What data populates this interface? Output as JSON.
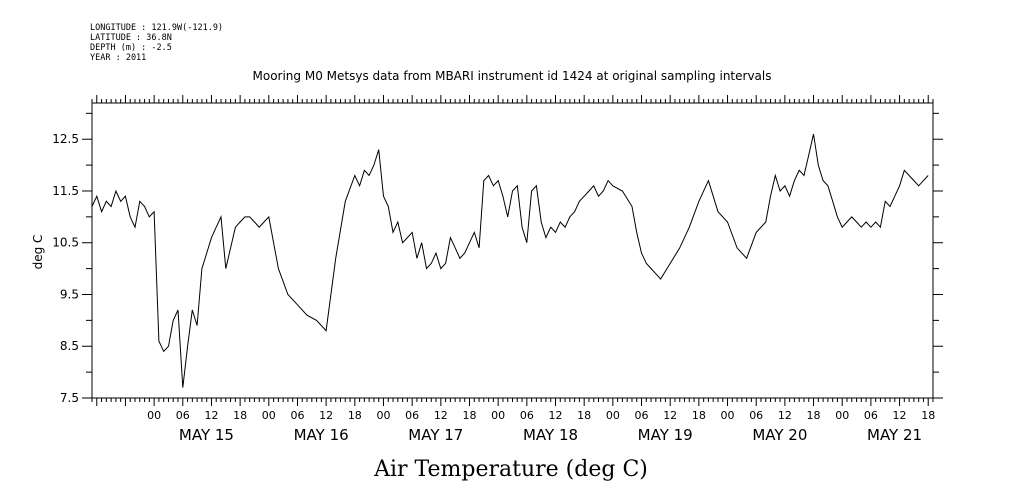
{
  "header": {
    "longitude": "LONGITUDE : 121.9W(-121.9)",
    "latitude": "LATITUDE : 36.8N",
    "depth": "DEPTH (m) : -2.5",
    "year": "YEAR : 2011"
  },
  "chart_data": {
    "type": "line",
    "title": "Mooring M0 Metsys data from MBARI instrument id 1424 at original sampling intervals",
    "xlabel": "Air Temperature (deg C)",
    "ylabel": "deg C",
    "xlim_hours_from_may15_00": [
      -13,
      163
    ],
    "ylim": [
      7.5,
      13.2
    ],
    "y_ticks": [
      7.5,
      8.5,
      9.5,
      10.5,
      11.5,
      12.5
    ],
    "hour_labels": [
      "00",
      "06",
      "12",
      "18",
      "00",
      "06",
      "12",
      "18",
      "00",
      "06",
      "12",
      "18",
      "00",
      "06",
      "12",
      "18",
      "00",
      "06",
      "12",
      "18",
      "00",
      "06",
      "12",
      "18",
      "00",
      "06",
      "12",
      "18"
    ],
    "day_labels": [
      "MAY 15",
      "MAY 16",
      "MAY 17",
      "MAY 18",
      "MAY 19",
      "MAY 20",
      "MAY 21"
    ],
    "grid": false,
    "series": [
      {
        "x": [
          -13,
          -12,
          -11,
          -10,
          -9,
          -8,
          -7,
          -6,
          -5,
          -4,
          -3,
          -2,
          -1,
          0,
          1,
          2,
          3,
          4,
          5,
          6,
          7,
          8,
          9,
          10,
          11,
          12,
          13,
          14,
          15,
          16,
          17,
          18,
          19,
          20,
          21,
          22,
          23,
          24,
          26,
          28,
          30,
          32,
          34,
          36,
          38,
          40,
          42,
          43,
          44,
          45,
          46,
          47,
          48,
          49,
          50,
          51,
          52,
          53,
          54,
          55,
          56,
          57,
          58,
          59,
          60,
          61,
          62,
          63,
          64,
          65,
          66,
          67,
          68,
          69,
          70,
          71,
          72,
          73,
          74,
          75,
          76,
          77,
          78,
          79,
          80,
          81,
          82,
          83,
          84,
          85,
          86,
          87,
          88,
          89,
          90,
          91,
          92,
          93,
          94,
          95,
          96,
          98,
          100,
          101,
          102,
          103,
          104,
          105,
          106,
          108,
          110,
          112,
          114,
          116,
          118,
          120,
          122,
          124,
          126,
          128,
          129,
          130,
          131,
          132,
          133,
          134,
          135,
          136,
          137,
          138,
          139,
          140,
          141,
          142,
          143,
          144,
          145,
          146,
          147,
          148,
          149,
          150,
          151,
          152,
          153,
          154,
          155,
          156,
          157,
          158,
          159,
          160,
          161,
          162
        ],
        "y": [
          11.2,
          11.4,
          11.1,
          11.3,
          11.2,
          11.5,
          11.3,
          11.4,
          11.0,
          10.8,
          11.3,
          11.2,
          11.0,
          11.1,
          8.6,
          8.4,
          8.5,
          9.0,
          9.2,
          7.7,
          8.5,
          9.2,
          8.9,
          10.0,
          10.3,
          10.6,
          10.8,
          11.0,
          10.0,
          10.4,
          10.8,
          10.9,
          11.0,
          11.0,
          10.9,
          10.8,
          10.9,
          11.0,
          10.0,
          9.5,
          9.3,
          9.1,
          9.0,
          8.8,
          10.2,
          11.3,
          11.8,
          11.6,
          11.9,
          11.8,
          12.0,
          12.3,
          11.4,
          11.2,
          10.7,
          10.9,
          10.5,
          10.6,
          10.7,
          10.2,
          10.5,
          10.0,
          10.1,
          10.3,
          10.0,
          10.1,
          10.6,
          10.4,
          10.2,
          10.3,
          10.5,
          10.7,
          10.4,
          11.7,
          11.8,
          11.6,
          11.7,
          11.4,
          11.0,
          11.5,
          11.6,
          10.8,
          10.5,
          11.5,
          11.6,
          10.9,
          10.6,
          10.8,
          10.7,
          10.9,
          10.8,
          11.0,
          11.1,
          11.3,
          11.4,
          11.5,
          11.6,
          11.4,
          11.5,
          11.7,
          11.6,
          11.5,
          11.2,
          10.7,
          10.3,
          10.1,
          10.0,
          9.9,
          9.8,
          10.1,
          10.4,
          10.8,
          11.3,
          11.7,
          11.1,
          10.9,
          10.4,
          10.2,
          10.7,
          10.9,
          11.4,
          11.8,
          11.5,
          11.6,
          11.4,
          11.7,
          11.9,
          11.8,
          12.2,
          12.6,
          12.0,
          11.7,
          11.6,
          11.3,
          11.0,
          10.8,
          10.9,
          11.0,
          10.9,
          10.8,
          10.9,
          10.8,
          10.9,
          10.8,
          11.3,
          11.2,
          11.4,
          11.6,
          11.9,
          11.8,
          11.7,
          11.6,
          11.7,
          11.8
        ]
      }
    ]
  }
}
